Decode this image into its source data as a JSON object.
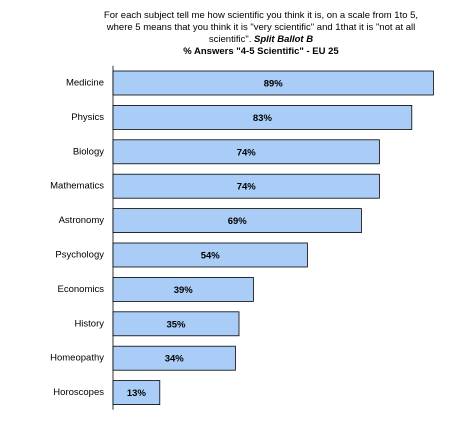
{
  "title": {
    "line1": "For each subject tell me how scientific you think it is, on a scale from 1to 5,",
    "line2": "where 5 means that you think it is \"very scientific\" and 1that it is \"not at all",
    "line3a": "scientific\". ",
    "line3b": "Split Ballot B",
    "line4": "% Answers \"4-5 Scientific\" - EU 25"
  },
  "chart_data": {
    "type": "bar",
    "orientation": "horizontal",
    "title": "% Answers \"4-5 Scientific\" - EU 25",
    "categories": [
      "Medicine",
      "Physics",
      "Biology",
      "Mathematics",
      "Astronomy",
      "Psychology",
      "Economics",
      "History",
      "Homeopathy",
      "Horoscopes"
    ],
    "values": [
      89,
      83,
      74,
      74,
      69,
      54,
      39,
      35,
      34,
      13
    ],
    "value_labels": [
      "89%",
      "83%",
      "74%",
      "74%",
      "69%",
      "54%",
      "39%",
      "35%",
      "34%",
      "13%"
    ],
    "xlim": [
      0,
      100
    ],
    "grid": false,
    "legend": "none",
    "bar_color": "#a9cdf7"
  }
}
